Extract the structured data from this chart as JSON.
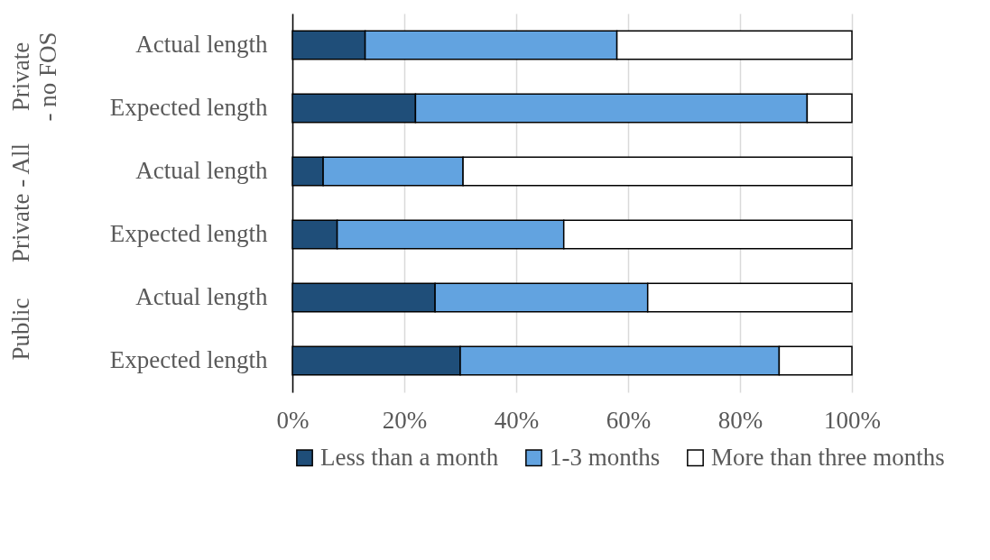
{
  "chart_data": {
    "type": "bar",
    "orientation": "horizontal",
    "stacked": true,
    "categories": [
      "Actual length",
      "Expected length",
      "Actual length",
      "Expected length",
      "Actual length",
      "Expected length"
    ],
    "series": [
      {
        "name": "Less than a month",
        "color": "#1f4e79",
        "values": [
          13,
          22,
          5.5,
          8,
          25.5,
          30
        ]
      },
      {
        "name": "1-3 months",
        "color": "#62a3e0",
        "values": [
          45,
          70,
          25,
          40.5,
          38,
          57
        ]
      },
      {
        "name": "More than three months",
        "color": "#ffffff",
        "values": [
          42,
          8,
          69.5,
          51.5,
          36.5,
          13
        ]
      }
    ],
    "xlim": [
      0,
      100
    ],
    "xticks": [
      {
        "value": 0,
        "label": "0%"
      },
      {
        "value": 20,
        "label": "20%"
      },
      {
        "value": 40,
        "label": "40%"
      },
      {
        "value": 60,
        "label": "60%"
      },
      {
        "value": 80,
        "label": "80%"
      },
      {
        "value": 100,
        "label": "100%"
      }
    ],
    "annotations": [
      "Private - no FOS",
      "Private - All",
      "Public"
    ],
    "grid": "x",
    "legend": "bottom"
  }
}
